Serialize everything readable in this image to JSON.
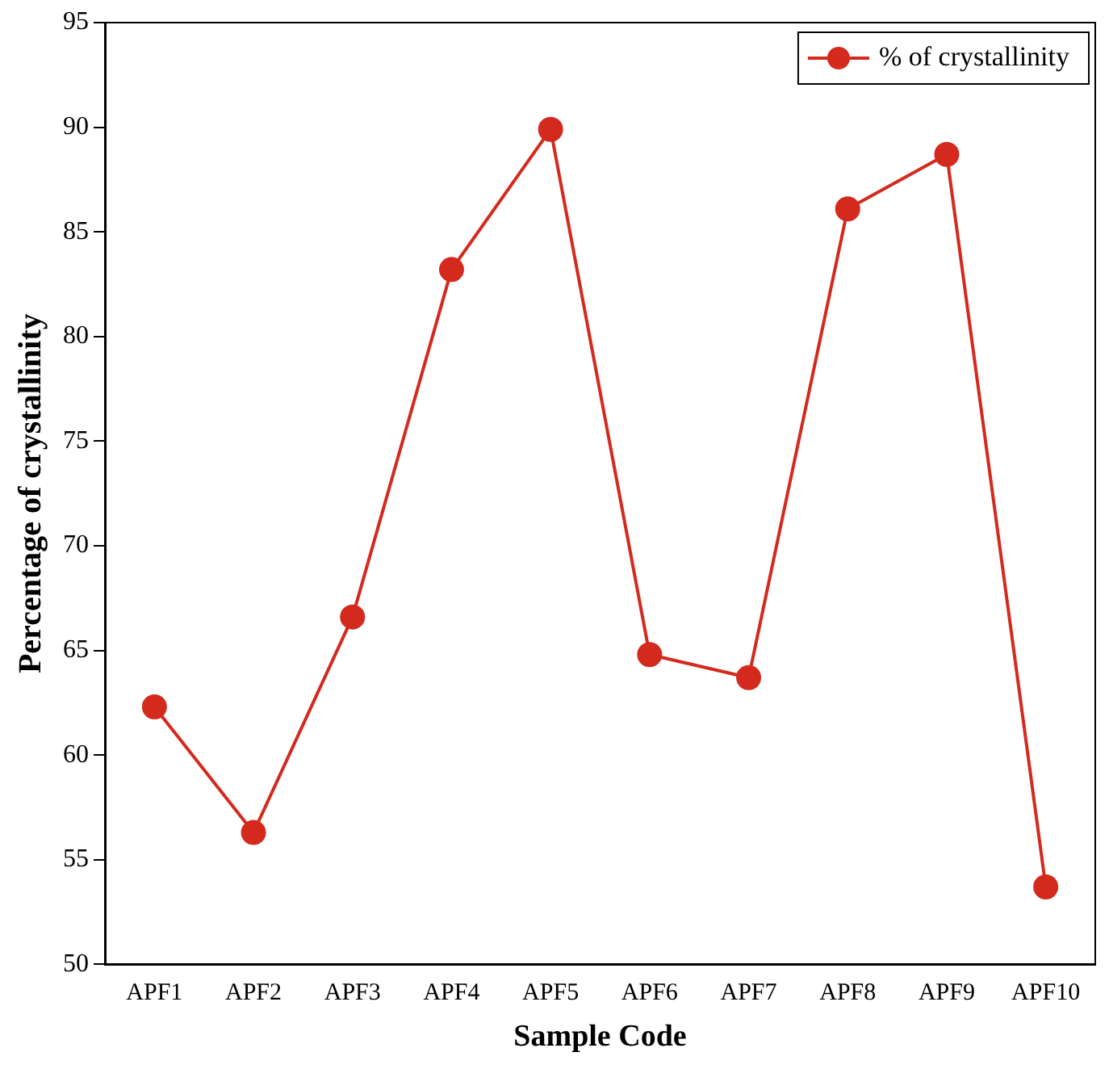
{
  "chart_data": {
    "type": "line",
    "xlabel": "Sample Code",
    "ylabel": "Percentage of crystallinity",
    "categories": [
      "APF1",
      "APF2",
      "APF3",
      "APF4",
      "APF5",
      "APF6",
      "APF7",
      "APF8",
      "APF9",
      "APF10"
    ],
    "series": [
      {
        "name": "% of crystallinity",
        "color": "#d42a1e",
        "values": [
          62.3,
          56.3,
          66.6,
          83.2,
          89.9,
          64.8,
          63.7,
          86.1,
          88.7,
          53.7
        ]
      }
    ],
    "ylim": [
      50,
      95
    ],
    "yticks": [
      50,
      55,
      60,
      65,
      70,
      75,
      80,
      85,
      90,
      95
    ],
    "grid": false,
    "legend": "top right",
    "marker": "circle",
    "line_style": "solid"
  }
}
